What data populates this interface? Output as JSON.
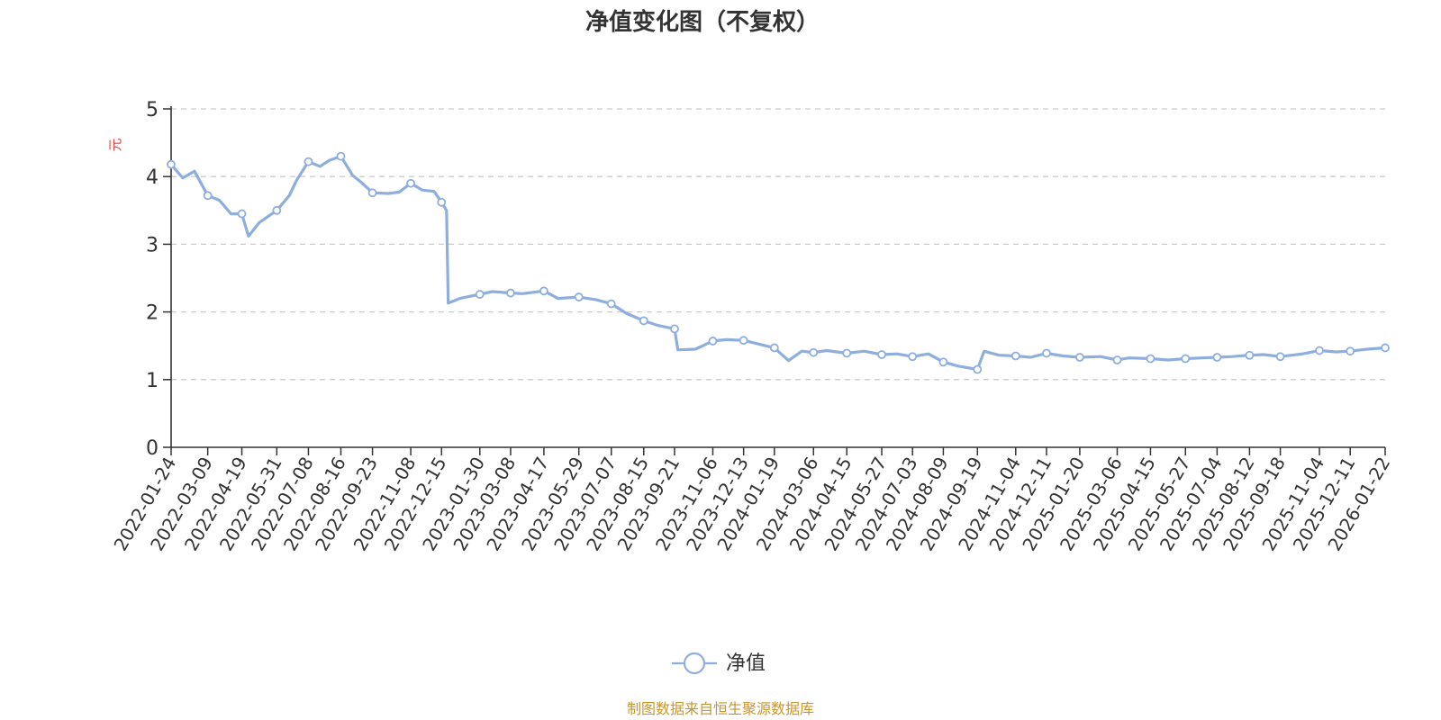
{
  "colors": {
    "series": "#8eaedd",
    "grid": "#cccccc",
    "axis": "#333333",
    "unit": "#e8413f",
    "source": "#c8962c"
  },
  "legend_icon": "circle-line-marker-icon",
  "chart_data": {
    "type": "line",
    "title": "净值变化图（不复权）",
    "xlabel": "",
    "ylabel": "元",
    "ylim": [
      0,
      5
    ],
    "yticks": [
      0,
      1,
      2,
      3,
      4,
      5
    ],
    "grid": true,
    "legend_position": "bottom-center",
    "xticks": [
      "2022-01-24",
      "2022-03-09",
      "2022-04-19",
      "2022-05-31",
      "2022-07-08",
      "2022-08-16",
      "2022-09-23",
      "2022-11-08",
      "2022-12-15",
      "2023-01-30",
      "2023-03-08",
      "2023-04-17",
      "2023-05-29",
      "2023-07-07",
      "2023-08-15",
      "2023-09-21",
      "2023-11-06",
      "2023-12-13",
      "2024-01-19",
      "2024-03-06",
      "2024-04-15",
      "2024-05-27",
      "2024-07-03",
      "2024-08-09",
      "2024-09-19",
      "2024-11-04",
      "2024-12-11",
      "2025-01-20",
      "2025-03-06",
      "2025-04-15",
      "2025-05-27",
      "2025-07-04",
      "2025-08-12",
      "2025-09-18",
      "2025-11-04",
      "2025-12-11",
      "2026-01-22"
    ],
    "series": [
      {
        "name": "净值",
        "marker": "hollow-circle",
        "x": [
          "2022-01-24",
          "2022-02-07",
          "2022-02-21",
          "2022-03-09",
          "2022-03-23",
          "2022-04-06",
          "2022-04-19",
          "2022-04-27",
          "2022-05-10",
          "2022-05-31",
          "2022-06-15",
          "2022-06-24",
          "2022-07-08",
          "2022-07-22",
          "2022-08-02",
          "2022-08-16",
          "2022-08-30",
          "2022-09-09",
          "2022-09-23",
          "2022-10-12",
          "2022-10-25",
          "2022-11-08",
          "2022-11-22",
          "2022-12-06",
          "2022-12-15",
          "2022-12-21",
          "2022-12-23",
          "2023-01-06",
          "2023-01-30",
          "2023-02-14",
          "2023-03-08",
          "2023-03-22",
          "2023-04-17",
          "2023-05-04",
          "2023-05-29",
          "2023-06-19",
          "2023-07-07",
          "2023-07-25",
          "2023-08-15",
          "2023-09-01",
          "2023-09-21",
          "2023-09-25",
          "2023-10-16",
          "2023-11-06",
          "2023-11-22",
          "2023-12-13",
          "2024-01-02",
          "2024-01-19",
          "2024-02-05",
          "2024-02-21",
          "2024-03-06",
          "2024-03-22",
          "2024-04-15",
          "2024-05-06",
          "2024-05-27",
          "2024-06-14",
          "2024-07-03",
          "2024-07-22",
          "2024-08-09",
          "2024-08-27",
          "2024-09-19",
          "2024-09-27",
          "2024-10-15",
          "2024-11-04",
          "2024-11-22",
          "2024-12-11",
          "2024-12-31",
          "2025-01-20",
          "2025-02-14",
          "2025-03-06",
          "2025-03-20",
          "2025-04-15",
          "2025-05-06",
          "2025-05-27",
          "2025-06-16",
          "2025-07-04",
          "2025-07-22",
          "2025-08-12",
          "2025-08-29",
          "2025-09-18",
          "2025-10-15",
          "2025-11-04",
          "2025-11-24",
          "2025-12-11",
          "2025-12-31",
          "2026-01-22"
        ],
        "y": [
          4.18,
          3.98,
          4.08,
          3.72,
          3.65,
          3.45,
          3.45,
          3.12,
          3.32,
          3.5,
          3.72,
          3.95,
          4.22,
          4.15,
          4.24,
          4.3,
          4.02,
          3.92,
          3.76,
          3.75,
          3.77,
          3.9,
          3.8,
          3.78,
          3.62,
          3.5,
          2.13,
          2.2,
          2.26,
          2.3,
          2.28,
          2.27,
          2.31,
          2.2,
          2.22,
          2.18,
          2.12,
          1.98,
          1.87,
          1.8,
          1.75,
          1.44,
          1.45,
          1.57,
          1.59,
          1.58,
          1.52,
          1.47,
          1.28,
          1.42,
          1.4,
          1.43,
          1.39,
          1.42,
          1.37,
          1.38,
          1.34,
          1.38,
          1.26,
          1.2,
          1.15,
          1.42,
          1.36,
          1.35,
          1.33,
          1.39,
          1.35,
          1.33,
          1.34,
          1.29,
          1.32,
          1.31,
          1.29,
          1.31,
          1.32,
          1.33,
          1.34,
          1.36,
          1.37,
          1.34,
          1.38,
          1.43,
          1.41,
          1.42,
          1.45,
          1.47
        ]
      }
    ]
  },
  "source_note": "制图数据来自恒生聚源数据库"
}
